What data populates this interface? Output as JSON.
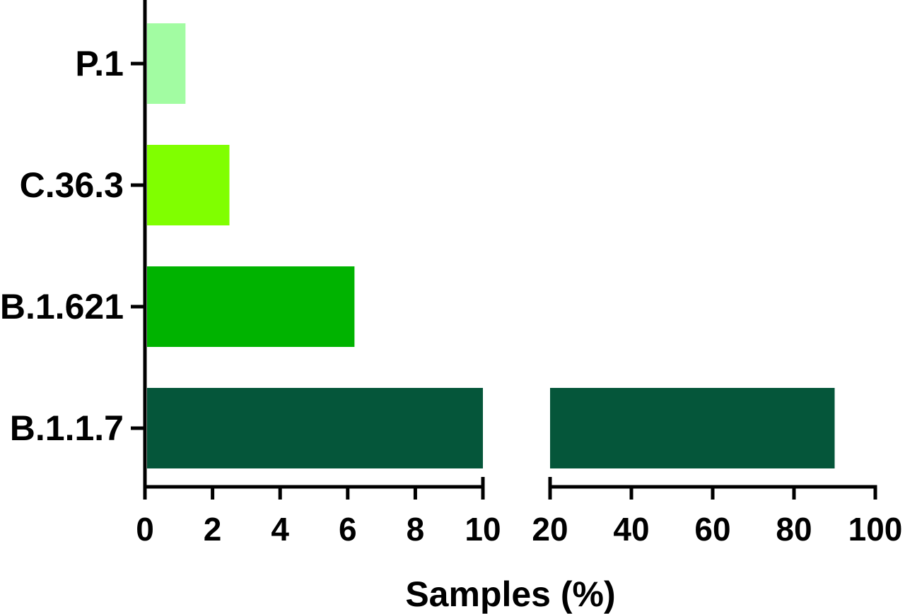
{
  "chart_data": {
    "type": "bar",
    "orientation": "horizontal",
    "categories": [
      "P.1",
      "C.36.3",
      "B.1.621",
      "B.1.1.7"
    ],
    "values": [
      1.2,
      2.5,
      6.2,
      90
    ],
    "colors": [
      "#a2fca2",
      "#80ff00",
      "#00b300",
      "#05563a"
    ],
    "xlabel": "Samples (%)",
    "ylabel": "",
    "title": "",
    "x_axis_broken": true,
    "x_segments": [
      {
        "range": [
          0,
          10
        ],
        "ticks": [
          0,
          2,
          4,
          6,
          8,
          10
        ]
      },
      {
        "range": [
          20,
          100
        ],
        "ticks": [
          20,
          40,
          60,
          80,
          100
        ]
      }
    ],
    "grid": false,
    "legend": "none"
  }
}
